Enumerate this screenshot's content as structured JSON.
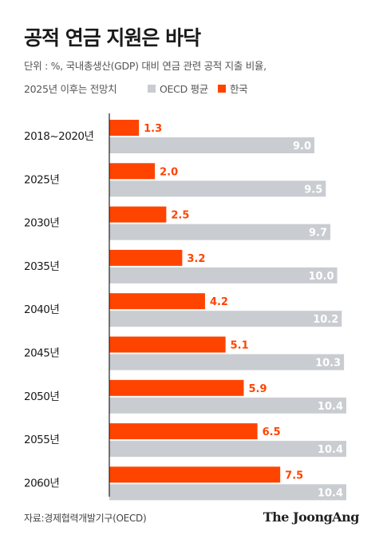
{
  "header": {
    "title": "공적 연금 지원은 바닥",
    "subtitle_line1": "단위 : %, 국내총생산(GDP) 대비 연금 관련 공적 지출 비율,",
    "subtitle_line2": "2025년 이후는 전망치"
  },
  "colors": {
    "korea": "#ff4400",
    "oecd": "#c9ccd0",
    "axis": "#222222"
  },
  "chart_data": {
    "type": "bar",
    "orientation": "horizontal",
    "title": "공적 연금 지원은 바닥",
    "unit": "%",
    "categories": [
      "2018~2020년",
      "2025년",
      "2030년",
      "2035년",
      "2040년",
      "2045년",
      "2050년",
      "2055년",
      "2060년"
    ],
    "series": [
      {
        "name": "한국",
        "values": [
          1.3,
          2.0,
          2.5,
          3.2,
          4.2,
          5.1,
          5.9,
          6.5,
          7.5
        ],
        "value_labels": [
          "1.3",
          "2.0",
          "2.5",
          "3.2",
          "4.2",
          "5.1",
          "5.9",
          "6.5",
          "7.5"
        ]
      },
      {
        "name": "OECD 평균",
        "values": [
          9.0,
          9.5,
          9.7,
          10.0,
          10.2,
          10.3,
          10.4,
          10.4,
          10.4
        ],
        "value_labels": [
          "9.0",
          "9.5",
          "9.7",
          "10.0",
          "10.2",
          "10.3",
          "10.4",
          "10.4",
          "10.4"
        ]
      }
    ],
    "xlim": [
      0,
      10.4
    ],
    "legend": {
      "placement": "top",
      "items": [
        "OECD 평균",
        "한국"
      ]
    },
    "grid": false
  },
  "footer": {
    "source": "자료:경제협력개발기구(OECD)",
    "logo": "The JoongAng"
  }
}
